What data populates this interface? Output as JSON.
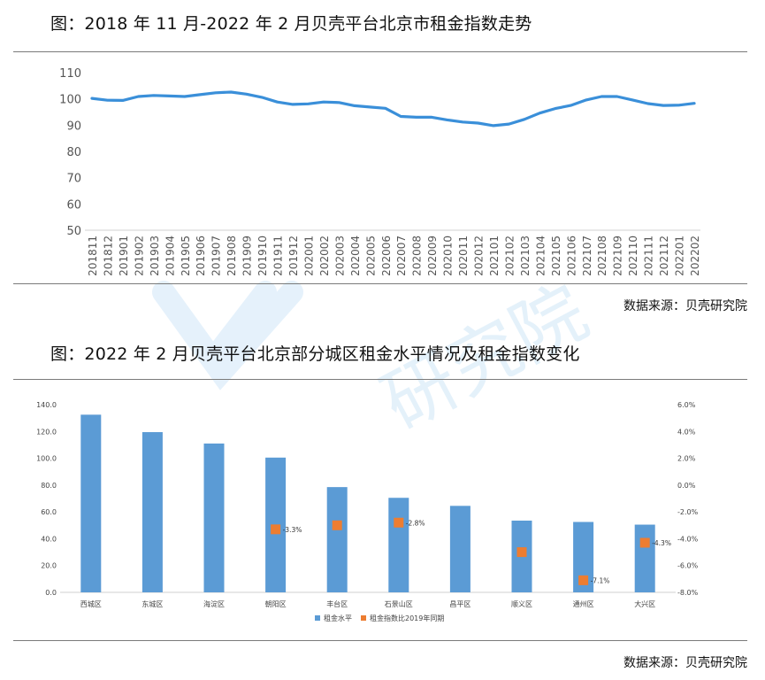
{
  "section1": {
    "title": "图：2018 年 11 月-2022 年 2 月贝壳平台北京市租金指数走势",
    "source": "数据来源：贝壳研究院"
  },
  "section2": {
    "title": "图：2022 年 2 月贝壳平台北京部分城区租金水平情况及租金指数变化",
    "source": "数据来源：贝壳研究院"
  },
  "watermark": {
    "text": "研究院",
    "color": "#b9dcf3"
  },
  "chart_data": [
    {
      "type": "line",
      "title": "",
      "xlabel": "",
      "ylabel": "",
      "ylim": [
        50,
        110
      ],
      "yticks": [
        50,
        60,
        70,
        80,
        90,
        100,
        110
      ],
      "grid": false,
      "color": "#3a8fd9",
      "x": [
        "201811",
        "201812",
        "201901",
        "201902",
        "201903",
        "201904",
        "201905",
        "201906",
        "201907",
        "201908",
        "201909",
        "201910",
        "201911",
        "201912",
        "202001",
        "202002",
        "202003",
        "202004",
        "202005",
        "202006",
        "202007",
        "202008",
        "202009",
        "202010",
        "202011",
        "202012",
        "202101",
        "202102",
        "202103",
        "202104",
        "202105",
        "202106",
        "202107",
        "202108",
        "202109",
        "202110",
        "202111",
        "202112",
        "202201",
        "202202"
      ],
      "series": [
        {
          "name": "",
          "values": [
            100.2,
            99.5,
            99.4,
            100.9,
            101.3,
            101.1,
            100.9,
            101.6,
            102.3,
            102.6,
            101.8,
            100.6,
            98.8,
            97.9,
            98.1,
            98.8,
            98.6,
            97.4,
            96.9,
            96.4,
            93.3,
            93.0,
            93.0,
            92.0,
            91.2,
            90.8,
            89.8,
            90.4,
            92.2,
            94.6,
            96.3,
            97.5,
            99.6,
            100.9,
            100.9,
            99.6,
            98.2,
            97.5,
            97.6,
            98.3
          ]
        }
      ]
    },
    {
      "type": "bar",
      "title": "",
      "xlabel": "",
      "categories": [
        "西城区",
        "东城区",
        "海淀区",
        "朝阳区",
        "丰台区",
        "石景山区",
        "昌平区",
        "顺义区",
        "通州区",
        "大兴区"
      ],
      "ylim_left": [
        0,
        140
      ],
      "yticks_left": [
        "0.0",
        "20.0",
        "40.0",
        "60.0",
        "80.0",
        "100.0",
        "120.0",
        "140.0"
      ],
      "ylim_right": [
        -8,
        6
      ],
      "yticks_right": [
        "-8.0%",
        "-6.0%",
        "-4.0%",
        "-2.0%",
        "0.0%",
        "2.0%",
        "4.0%",
        "6.0%"
      ],
      "legend_position": "bottom",
      "series": [
        {
          "name": "租金水平",
          "type": "bar",
          "axis": "left",
          "color": "#5b9bd5",
          "values": [
            132.5,
            119.5,
            111.0,
            100.5,
            78.5,
            70.5,
            64.5,
            53.5,
            52.5,
            50.5
          ]
        },
        {
          "name": "租金指数比2019年同期",
          "type": "scatter",
          "axis": "right",
          "color": "#ed7d31",
          "values": [
            null,
            null,
            null,
            -3.3,
            -3.0,
            -2.8,
            null,
            -5.0,
            -7.1,
            -4.3
          ],
          "labels": [
            "",
            "",
            "",
            "-3.3%",
            "",
            "-2.8%",
            "",
            "",
            "-7.1%",
            "-4.3%"
          ]
        }
      ]
    }
  ]
}
